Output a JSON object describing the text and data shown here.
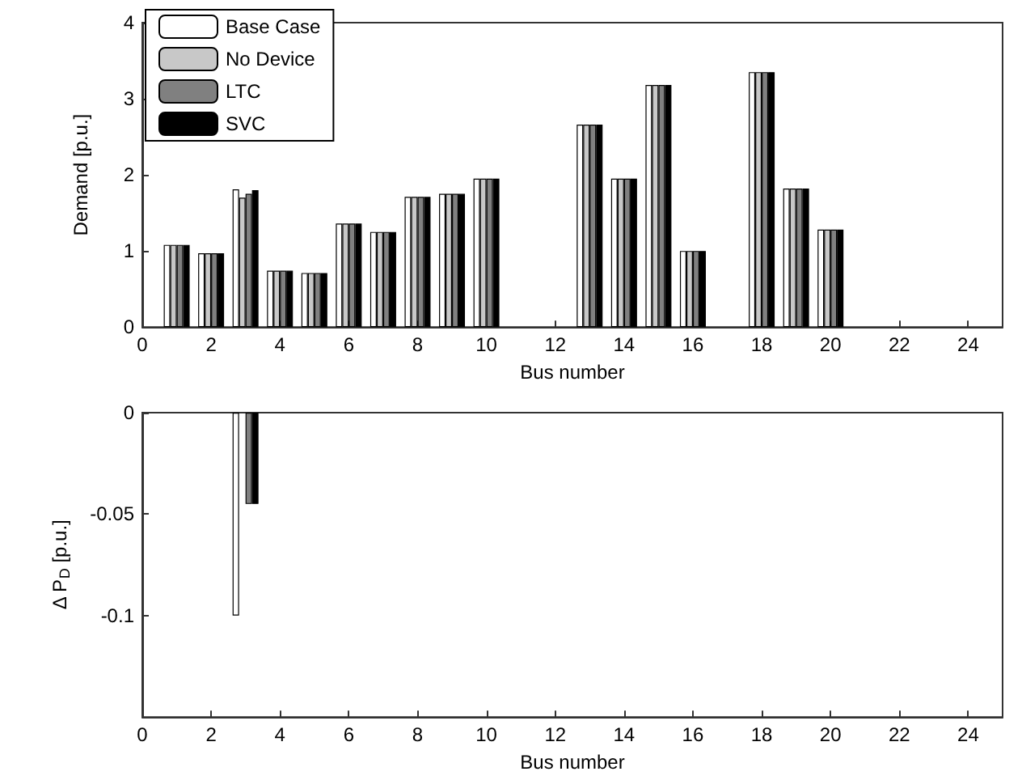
{
  "chart_data": [
    {
      "type": "bar",
      "xlabel": "Bus number",
      "ylabel": "Demand [p.u.]",
      "x": [
        1,
        2,
        3,
        4,
        5,
        6,
        7,
        8,
        9,
        10,
        13,
        14,
        15,
        16,
        18,
        19,
        20
      ],
      "series": [
        {
          "name": "Base Case",
          "color": "#ffffff",
          "values": [
            1.08,
            0.97,
            1.81,
            0.74,
            0.71,
            1.36,
            1.25,
            1.71,
            1.75,
            1.95,
            2.66,
            1.95,
            3.18,
            1.0,
            3.35,
            1.82,
            1.28
          ]
        },
        {
          "name": "No Device",
          "color": "#c8c8c8",
          "values": [
            1.08,
            0.97,
            1.7,
            0.74,
            0.71,
            1.36,
            1.25,
            1.71,
            1.75,
            1.95,
            2.66,
            1.95,
            3.18,
            1.0,
            3.35,
            1.82,
            1.28
          ]
        },
        {
          "name": "LTC",
          "color": "#808080",
          "values": [
            1.08,
            0.97,
            1.75,
            0.74,
            0.71,
            1.36,
            1.25,
            1.71,
            1.75,
            1.95,
            2.66,
            1.95,
            3.18,
            1.0,
            3.35,
            1.82,
            1.28
          ]
        },
        {
          "name": "SVC",
          "color": "#000000",
          "values": [
            1.08,
            0.97,
            1.8,
            0.74,
            0.71,
            1.36,
            1.25,
            1.71,
            1.75,
            1.95,
            2.66,
            1.95,
            3.18,
            1.0,
            3.35,
            1.82,
            1.28
          ]
        }
      ],
      "xlim": [
        0,
        25
      ],
      "xticks": [
        0,
        2,
        4,
        6,
        8,
        10,
        12,
        14,
        16,
        18,
        20,
        22,
        24
      ],
      "ylim": [
        0,
        4
      ],
      "yticks": [
        0,
        1,
        2,
        3,
        4
      ],
      "legend": "top left"
    },
    {
      "type": "bar",
      "xlabel": "Bus number",
      "ylabel": "Δ P$_{D}$ [p.u.]",
      "x": [
        3
      ],
      "series": [
        {
          "color": "#ffffff",
          "values": [
            -0.1
          ]
        },
        {
          "color": "#c8c8c8",
          "values": [
            null
          ]
        },
        {
          "color": "#808080",
          "values": [
            -0.045
          ]
        },
        {
          "color": "#000000",
          "values": [
            -0.045
          ]
        }
      ],
      "xlim": [
        0,
        25
      ],
      "xticks": [
        0,
        2,
        4,
        6,
        8,
        10,
        12,
        14,
        16,
        18,
        20,
        22,
        24
      ],
      "ylim": [
        -0.15,
        0
      ],
      "yticks": [
        0,
        -0.05,
        -0.1
      ]
    }
  ]
}
